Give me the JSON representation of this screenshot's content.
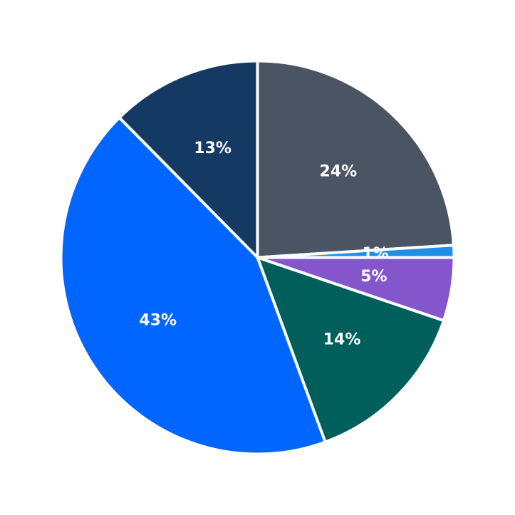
{
  "chart_data": {
    "type": "pie",
    "start_angle_deg": 90,
    "direction": "clockwise",
    "legend": "none",
    "slices": [
      {
        "label": "24%",
        "value": 24.0,
        "color": "#4a5463"
      },
      {
        "label": "1%",
        "value": 1.0,
        "color": "#1f8fe6"
      },
      {
        "label": "5%",
        "value": 5.2,
        "color": "#8456cc"
      },
      {
        "label": "14%",
        "value": 14.2,
        "color": "#005e5b"
      },
      {
        "label": "43%",
        "value": 43.2,
        "color": "#0066ff"
      },
      {
        "label": "13%",
        "value": 12.4,
        "color": "#143963"
      }
    ]
  }
}
